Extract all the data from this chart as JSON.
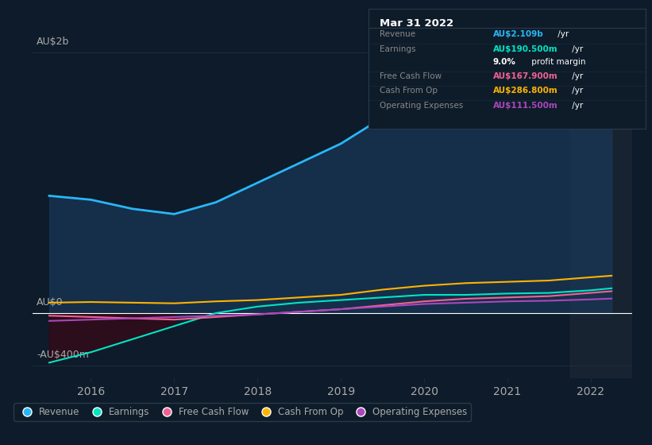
{
  "background_color": "#0d1b2a",
  "plot_bg_color": "#0d1b2a",
  "title": "Mar 31 2022",
  "ylabel_top": "AU$2b",
  "ylabel_zero": "AU$0",
  "ylabel_neg": "-AU$400m",
  "years": [
    2015.5,
    2016.0,
    2016.5,
    2017.0,
    2017.5,
    2018.0,
    2018.5,
    2019.0,
    2019.5,
    2020.0,
    2020.5,
    2021.0,
    2021.5,
    2022.0,
    2022.25
  ],
  "revenue": [
    900,
    870,
    800,
    760,
    850,
    1000,
    1150,
    1300,
    1500,
    1700,
    1600,
    1450,
    1550,
    1900,
    2109
  ],
  "earnings": [
    -380,
    -300,
    -200,
    -100,
    0,
    50,
    80,
    100,
    120,
    140,
    140,
    150,
    155,
    175,
    190.5
  ],
  "free_cash_flow": [
    -20,
    -30,
    -40,
    -50,
    -30,
    -10,
    10,
    30,
    60,
    90,
    110,
    120,
    130,
    155,
    167.9
  ],
  "cash_from_op": [
    80,
    85,
    80,
    75,
    90,
    100,
    120,
    140,
    180,
    210,
    230,
    240,
    250,
    275,
    286.8
  ],
  "operating_expenses": [
    -60,
    -50,
    -40,
    -30,
    -20,
    -10,
    10,
    30,
    50,
    70,
    80,
    90,
    95,
    105,
    111.5
  ],
  "revenue_color": "#29b6f6",
  "revenue_fill": "#1a3a5c",
  "earnings_color": "#00e5c3",
  "free_cash_flow_color": "#f06292",
  "cash_from_op_color": "#ffb300",
  "operating_expenses_color": "#ab47bc",
  "grid_color": "#1e2d3d",
  "text_color": "#aaaaaa",
  "zero_line_color": "#ffffff",
  "info_box": {
    "title": "Mar 31 2022",
    "rows": [
      {
        "label": "Revenue",
        "value": "AU$2.109b /yr",
        "value_color": "#29b6f6"
      },
      {
        "label": "Earnings",
        "value": "AU$190.500m /yr",
        "value_color": "#00e5c3"
      },
      {
        "label": "",
        "value": "9.0% profit margin",
        "value_color": "#ffffff",
        "bold": "9.0%"
      },
      {
        "label": "Free Cash Flow",
        "value": "AU$167.900m /yr",
        "value_color": "#f06292"
      },
      {
        "label": "Cash From Op",
        "value": "AU$286.800m /yr",
        "value_color": "#ffb300"
      },
      {
        "label": "Operating Expenses",
        "value": "AU$111.500m /yr",
        "value_color": "#ab47bc"
      }
    ]
  },
  "legend_items": [
    {
      "label": "Revenue",
      "color": "#29b6f6"
    },
    {
      "label": "Earnings",
      "color": "#00e5c3"
    },
    {
      "label": "Free Cash Flow",
      "color": "#f06292"
    },
    {
      "label": "Cash From Op",
      "color": "#ffb300"
    },
    {
      "label": "Operating Expenses",
      "color": "#ab47bc"
    }
  ],
  "xlim": [
    2015.3,
    2022.5
  ],
  "ylim": [
    -500,
    2300
  ],
  "xticks": [
    2016,
    2017,
    2018,
    2019,
    2020,
    2021,
    2022
  ],
  "highlight_x": 2021.75
}
